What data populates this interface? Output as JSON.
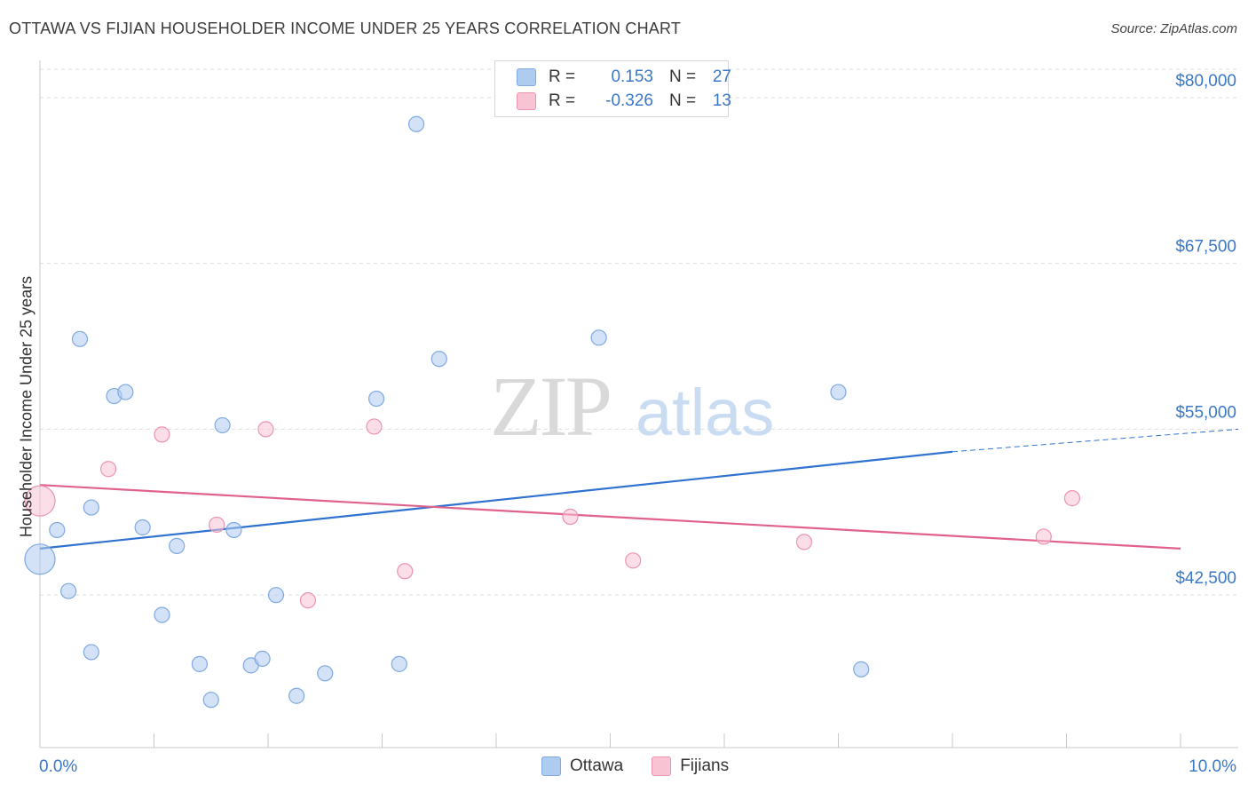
{
  "title": "OTTAWA VS FIJIAN HOUSEHOLDER INCOME UNDER 25 YEARS CORRELATION CHART",
  "source": "Source: ZipAtlas.com",
  "watermark": {
    "zip": "ZIP",
    "atlas": "atlas"
  },
  "legend": {
    "rows": [
      {
        "r_label": "R =",
        "r_value": "0.153",
        "n_label": "N =",
        "n_value": "27",
        "color": "#aecbf0",
        "border": "#7fa9e0"
      },
      {
        "r_label": "R =",
        "r_value": "-0.326",
        "n_label": "N =",
        "n_value": "13",
        "color": "#f8c3d3",
        "border": "#ec94b0"
      }
    ]
  },
  "bottom_legend": [
    {
      "label": "Ottawa",
      "color": "#aecbf0",
      "border": "#7fa9e0"
    },
    {
      "label": "Fijians",
      "color": "#f8c3d3",
      "border": "#ec94b0"
    }
  ],
  "chart_data": {
    "type": "scatter",
    "title": "OTTAWA VS FIJIAN HOUSEHOLDER INCOME UNDER 25 YEARS CORRELATION CHART",
    "xlabel": "",
    "ylabel": "Householder Income Under 25 years",
    "xlim": [
      0,
      10
    ],
    "ylim": [
      31000,
      82000
    ],
    "x_tick_labels": [
      "0.0%",
      "10.0%"
    ],
    "y_ticks": [
      {
        "value": 42500,
        "label": "$42,500"
      },
      {
        "value": 55000,
        "label": "$55,000"
      },
      {
        "value": 67500,
        "label": "$67,500"
      },
      {
        "value": 80000,
        "label": "$80,000"
      }
    ],
    "grid": "horizontal dashed",
    "series": [
      {
        "name": "Ottawa",
        "color": "#7fa9e0",
        "fill": "#aecbf0",
        "points": [
          {
            "x": 0.0,
            "y": 45200,
            "big": true
          },
          {
            "x": 0.15,
            "y": 47400
          },
          {
            "x": 0.25,
            "y": 42800
          },
          {
            "x": 0.35,
            "y": 61800
          },
          {
            "x": 0.45,
            "y": 38200
          },
          {
            "x": 0.45,
            "y": 49100
          },
          {
            "x": 0.65,
            "y": 57500
          },
          {
            "x": 0.75,
            "y": 57800
          },
          {
            "x": 0.9,
            "y": 47600
          },
          {
            "x": 1.07,
            "y": 41000
          },
          {
            "x": 1.2,
            "y": 46200
          },
          {
            "x": 1.4,
            "y": 37300
          },
          {
            "x": 1.5,
            "y": 34600
          },
          {
            "x": 1.7,
            "y": 47400
          },
          {
            "x": 1.6,
            "y": 55300
          },
          {
            "x": 1.85,
            "y": 37200
          },
          {
            "x": 1.95,
            "y": 37700
          },
          {
            "x": 2.07,
            "y": 42500
          },
          {
            "x": 2.25,
            "y": 34900
          },
          {
            "x": 2.5,
            "y": 36600
          },
          {
            "x": 2.95,
            "y": 57300
          },
          {
            "x": 3.15,
            "y": 37300
          },
          {
            "x": 3.3,
            "y": 78000
          },
          {
            "x": 3.5,
            "y": 60300
          },
          {
            "x": 4.9,
            "y": 61900
          },
          {
            "x": 7.0,
            "y": 57800
          },
          {
            "x": 7.2,
            "y": 36900
          }
        ],
        "trend": {
          "x0": 0.0,
          "y0": 46000,
          "x1": 8.0,
          "y1": 53300,
          "dashed_to_x": 10.0,
          "dashed_to_y": 55000
        }
      },
      {
        "name": "Fijians",
        "color": "#ec94b0",
        "fill": "#f8c3d3",
        "points": [
          {
            "x": 0.0,
            "y": 49600,
            "big": true
          },
          {
            "x": 0.6,
            "y": 52000
          },
          {
            "x": 1.07,
            "y": 54600
          },
          {
            "x": 1.55,
            "y": 47800
          },
          {
            "x": 1.98,
            "y": 55000
          },
          {
            "x": 2.35,
            "y": 42100
          },
          {
            "x": 2.93,
            "y": 55200
          },
          {
            "x": 3.2,
            "y": 44300
          },
          {
            "x": 4.65,
            "y": 48400
          },
          {
            "x": 5.2,
            "y": 45100
          },
          {
            "x": 6.7,
            "y": 46500
          },
          {
            "x": 8.8,
            "y": 46900
          },
          {
            "x": 9.05,
            "y": 49800
          }
        ],
        "trend": {
          "x0": 0.0,
          "y0": 50800,
          "x1": 10.0,
          "y1": 46000
        }
      }
    ]
  }
}
